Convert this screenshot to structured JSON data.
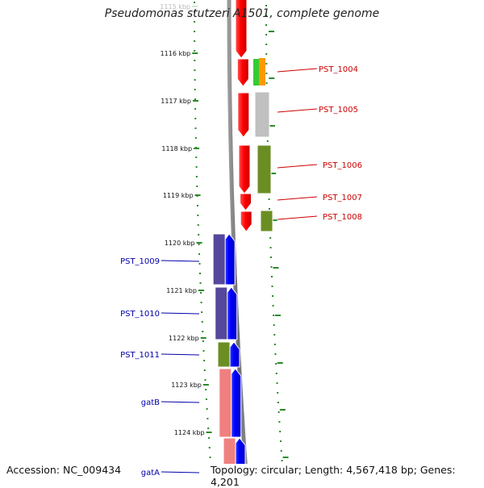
{
  "title": "Pseudomonas stutzeri A1501, complete genome",
  "accession": "Accession: NC_009434",
  "summary": "Topology: circular; Length: 4,567,418 bp; Genes: 4,201",
  "colors": {
    "strand_plus": "#ff0000",
    "strand_minus": "#0000ff",
    "cog_purple": "#55479a",
    "cog_olive": "#6b8e23",
    "cog_gray": "#c0c0c0",
    "cog_green": "#33cc33",
    "cog_orange": "#ff9900",
    "cog_pink": "#f08080",
    "label_plus": "#cc0000",
    "label_minus": "#0000aa",
    "ruler_ticks": "#2a8a2a"
  },
  "ruler": [
    {
      "label": "1115 kbp",
      "faded": true
    },
    {
      "label": "1116 kbp"
    },
    {
      "label": "1117 kbp"
    },
    {
      "label": "1118 kbp"
    },
    {
      "label": "1119 kbp"
    },
    {
      "label": "1120 kbp"
    },
    {
      "label": "1121 kbp"
    },
    {
      "label": "1122 kbp"
    },
    {
      "label": "1123 kbp"
    },
    {
      "label": "1124 kbp"
    }
  ],
  "genes_plus": [
    {
      "label": "",
      "cog": "cog_orange"
    },
    {
      "label": "PST_1004",
      "cog": "cog_green"
    },
    {
      "label": "PST_1005",
      "cog": "cog_gray"
    },
    {
      "label": "PST_1006",
      "cog": "cog_olive"
    },
    {
      "label": "PST_1007",
      "cog": ""
    },
    {
      "label": "PST_1008",
      "cog": "cog_olive"
    }
  ],
  "genes_minus": [
    {
      "label": "PST_1009",
      "cog": "cog_purple"
    },
    {
      "label": "PST_1010",
      "cog": "cog_purple"
    },
    {
      "label": "PST_1011",
      "cog": "cog_olive"
    },
    {
      "label": "gatB",
      "cog": "cog_pink"
    },
    {
      "label": "gatA",
      "cog": "cog_pink"
    }
  ]
}
